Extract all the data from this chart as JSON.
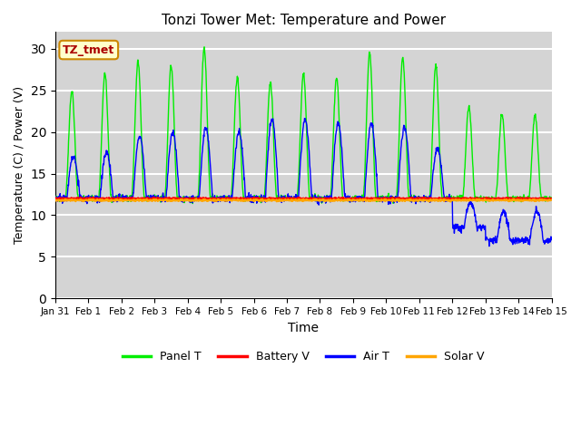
{
  "title": "Tonzi Tower Met: Temperature and Power",
  "xlabel": "Time",
  "ylabel": "Temperature (C) / Power (V)",
  "legend_label": "TZ_tmet",
  "legend_entries": [
    "Panel T",
    "Battery V",
    "Air T",
    "Solar V"
  ],
  "legend_colors": [
    "#00ff00",
    "#ff0000",
    "#0000ff",
    "#ffa500"
  ],
  "bg_color": "#d8d8d8",
  "ylim": [
    0,
    32
  ],
  "yticks": [
    0,
    5,
    10,
    15,
    20,
    25,
    30
  ],
  "x_start": 0,
  "x_end": 15,
  "xtick_labels": [
    "Jan 31",
    "Feb 1",
    "Feb 2",
    "Feb 3",
    "Feb 4",
    "Feb 5",
    "Feb 6",
    "Feb 7",
    "Feb 8",
    "Feb 9",
    "Feb 10",
    "Feb 11",
    "Feb 12",
    "Feb 13",
    "Feb 14",
    "Feb 15"
  ],
  "xtick_positions": [
    0,
    1,
    2,
    3,
    4,
    5,
    6,
    7,
    8,
    9,
    10,
    11,
    12,
    13,
    14,
    15
  ],
  "battery_level": 12.0,
  "solar_level": 11.8,
  "panel_color": "#00ee00",
  "battery_color": "#ff0000",
  "air_color": "#0000ff",
  "solar_color": "#ffa500"
}
